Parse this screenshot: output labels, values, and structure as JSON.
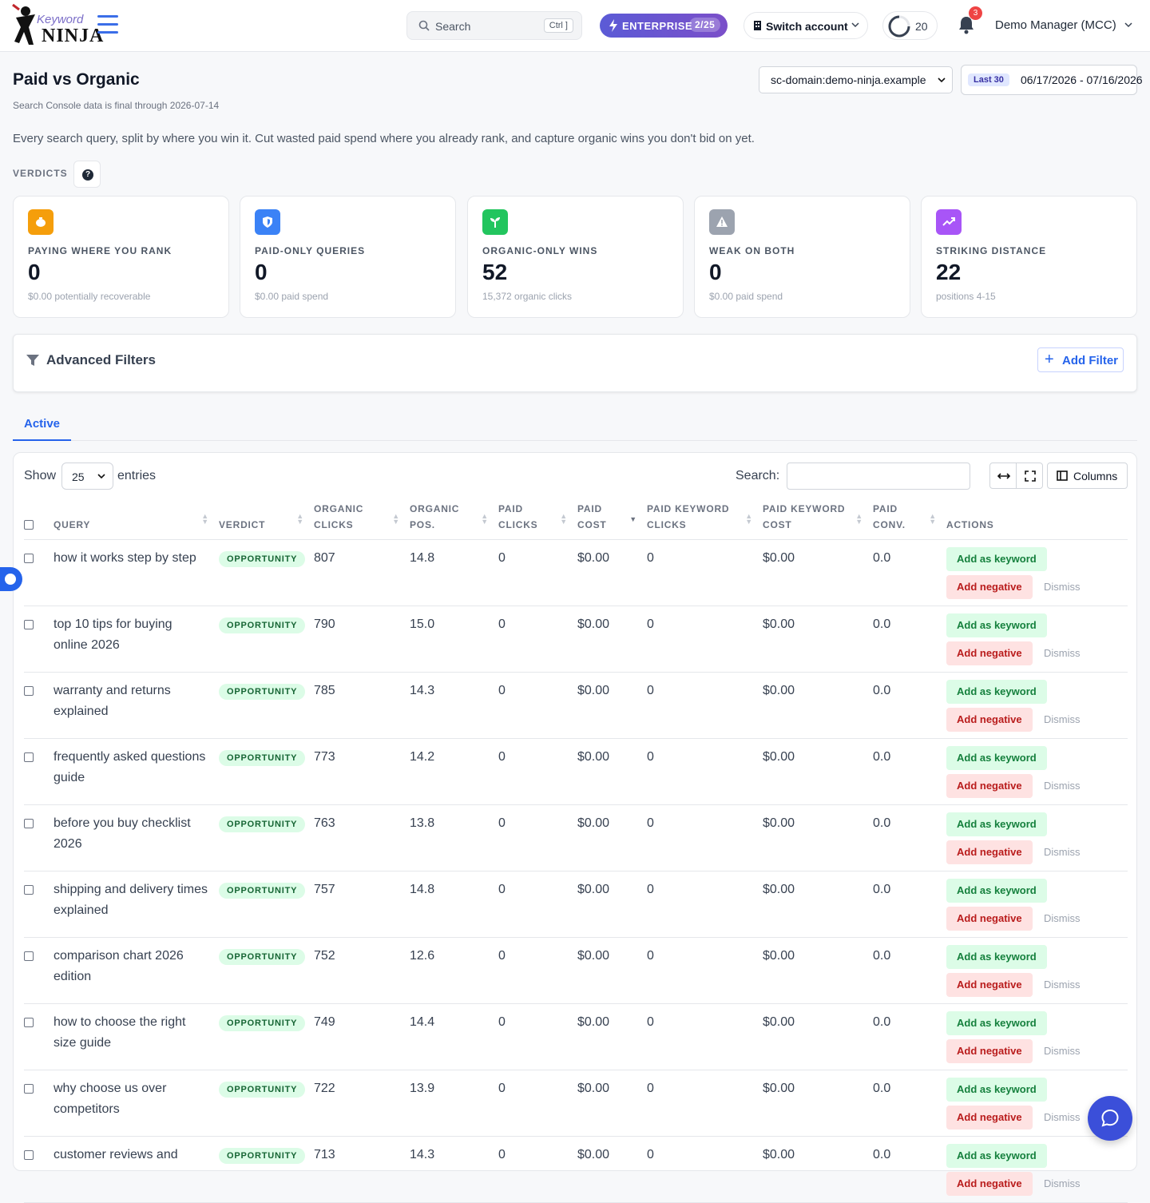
{
  "app": {
    "logo_word_top": "Keyword",
    "logo_word_bottom": "NINJA"
  },
  "header": {
    "search_label": "Search",
    "search_shortcut": "Ctrl ]",
    "plan_label": "ENTERPRISE",
    "plan_count": "2/25",
    "switch_label": "Switch account",
    "credits": "20",
    "notifications": "3",
    "user_name": "Demo Manager (MCC)"
  },
  "page": {
    "title": "Paid vs Organic",
    "freshness": "Search Console data is final through 2026-07-14",
    "domain": "sc-domain:demo-ninja.example",
    "range_pill": "Last 30",
    "date_range": "06/17/2026 - 07/16/2026",
    "intro": "Every search query, split by where you win it. Cut wasted paid spend where you already rank, and capture organic wins you don't bid on yet.",
    "verdicts_label": "VERDICTS",
    "help_glyph": "?"
  },
  "cards": [
    {
      "title": "PAYING WHERE YOU RANK",
      "value": "0",
      "sub": "$0.00 potentially recoverable",
      "color": "#f59e0b",
      "icon": "piggy-bank-icon"
    },
    {
      "title": "PAID-ONLY QUERIES",
      "value": "0",
      "sub": "$0.00 paid spend",
      "color": "#3b82f6",
      "icon": "shield-icon"
    },
    {
      "title": "ORGANIC-ONLY WINS",
      "value": "52",
      "sub": "15,372 organic clicks",
      "color": "#22c55e",
      "icon": "seedling-icon"
    },
    {
      "title": "WEAK ON BOTH",
      "value": "0",
      "sub": "$0.00 paid spend",
      "color": "#9ca3af",
      "icon": "warning-icon"
    },
    {
      "title": "STRIKING DISTANCE",
      "value": "22",
      "sub": "positions 4-15",
      "color": "#a855f7",
      "icon": "trending-up-icon"
    }
  ],
  "filters": {
    "title": "Advanced Filters",
    "add_label": "Add Filter"
  },
  "tabs": {
    "active": "Active"
  },
  "table": {
    "show_label": "Show",
    "page_size": "25",
    "entries_label": "entries",
    "search_label": "Search:",
    "columns_label": "Columns",
    "headers": {
      "query": "QUERY",
      "verdict": "VERDICT",
      "organic_clicks_1": "ORGANIC",
      "organic_clicks_2": "CLICKS",
      "organic_pos_1": "ORGANIC",
      "organic_pos_2": "POS.",
      "paid_clicks_1": "PAID",
      "paid_clicks_2": "CLICKS",
      "paid_cost_1": "PAID",
      "paid_cost_2": "COST",
      "paid_kw_clicks_1": "PAID KEYWORD",
      "paid_kw_clicks_2": "CLICKS",
      "paid_kw_cost_1": "PAID KEYWORD",
      "paid_kw_cost_2": "COST",
      "paid_conv_1": "PAID",
      "paid_conv_2": "CONV.",
      "actions": "ACTIONS"
    },
    "actions": {
      "add_keyword": "Add as keyword",
      "add_negative": "Add negative",
      "dismiss": "Dismiss"
    },
    "rows": [
      {
        "query": "how it works step by step",
        "verdict": "OPPORTUNITY",
        "organic_clicks": "807",
        "organic_pos": "14.8",
        "paid_clicks": "0",
        "paid_cost": "$0.00",
        "kw_clicks": "0",
        "kw_cost": "$0.00",
        "conv": "0.0"
      },
      {
        "query": "top 10 tips for buying online 2026",
        "verdict": "OPPORTUNITY",
        "organic_clicks": "790",
        "organic_pos": "15.0",
        "paid_clicks": "0",
        "paid_cost": "$0.00",
        "kw_clicks": "0",
        "kw_cost": "$0.00",
        "conv": "0.0"
      },
      {
        "query": "warranty and returns explained",
        "verdict": "OPPORTUNITY",
        "organic_clicks": "785",
        "organic_pos": "14.3",
        "paid_clicks": "0",
        "paid_cost": "$0.00",
        "kw_clicks": "0",
        "kw_cost": "$0.00",
        "conv": "0.0"
      },
      {
        "query": "frequently asked questions guide",
        "verdict": "OPPORTUNITY",
        "organic_clicks": "773",
        "organic_pos": "14.2",
        "paid_clicks": "0",
        "paid_cost": "$0.00",
        "kw_clicks": "0",
        "kw_cost": "$0.00",
        "conv": "0.0"
      },
      {
        "query": "before you buy checklist 2026",
        "verdict": "OPPORTUNITY",
        "organic_clicks": "763",
        "organic_pos": "13.8",
        "paid_clicks": "0",
        "paid_cost": "$0.00",
        "kw_clicks": "0",
        "kw_cost": "$0.00",
        "conv": "0.0"
      },
      {
        "query": "shipping and delivery times explained",
        "verdict": "OPPORTUNITY",
        "organic_clicks": "757",
        "organic_pos": "14.8",
        "paid_clicks": "0",
        "paid_cost": "$0.00",
        "kw_clicks": "0",
        "kw_cost": "$0.00",
        "conv": "0.0"
      },
      {
        "query": "comparison chart 2026 edition",
        "verdict": "OPPORTUNITY",
        "organic_clicks": "752",
        "organic_pos": "12.6",
        "paid_clicks": "0",
        "paid_cost": "$0.00",
        "kw_clicks": "0",
        "kw_cost": "$0.00",
        "conv": "0.0"
      },
      {
        "query": "how to choose the right size guide",
        "verdict": "OPPORTUNITY",
        "organic_clicks": "749",
        "organic_pos": "14.4",
        "paid_clicks": "0",
        "paid_cost": "$0.00",
        "kw_clicks": "0",
        "kw_cost": "$0.00",
        "conv": "0.0"
      },
      {
        "query": "why choose us over competitors",
        "verdict": "OPPORTUNITY",
        "organic_clicks": "722",
        "organic_pos": "13.9",
        "paid_clicks": "0",
        "paid_cost": "$0.00",
        "kw_clicks": "0",
        "kw_cost": "$0.00",
        "conv": "0.0"
      },
      {
        "query": "customer reviews and",
        "verdict": "OPPORTUNITY",
        "organic_clicks": "713",
        "organic_pos": "14.3",
        "paid_clicks": "0",
        "paid_cost": "$0.00",
        "kw_clicks": "0",
        "kw_cost": "$0.00",
        "conv": "0.0"
      }
    ]
  }
}
